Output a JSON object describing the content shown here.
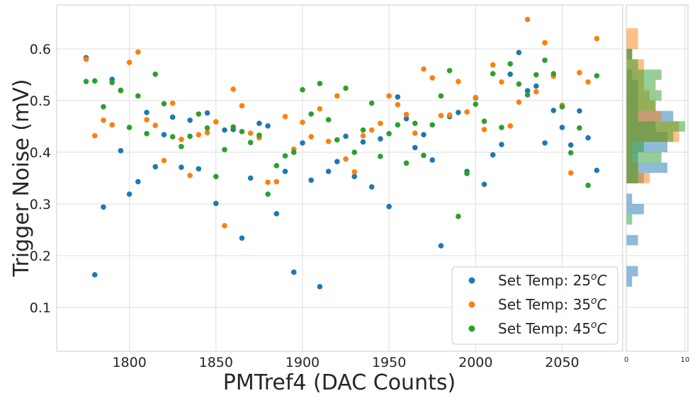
{
  "chart_data": [
    {
      "type": "scatter",
      "xlabel": "PMTref4 (DAC Counts)",
      "ylabel": "Trigger Noise (mV)",
      "xlim": [
        1758,
        2085
      ],
      "ylim": [
        0.015,
        0.685
      ],
      "x_ticks": [
        1800,
        1850,
        1900,
        1950,
        2000,
        2050
      ],
      "y_ticks": [
        0.1,
        0.2,
        0.3,
        0.4,
        0.5,
        0.6
      ],
      "x_tick_labels": [
        "1800",
        "1850",
        "1900",
        "1950",
        "2000",
        "2050"
      ],
      "y_tick_labels": [
        "0.1",
        "0.2",
        "0.3",
        "0.4",
        "0.5",
        "0.6"
      ],
      "grid": true,
      "legend_position": "bottom-right",
      "series": [
        {
          "name_prefix": "Set Temp: 25",
          "name_sup": "o",
          "name_suffix": "C",
          "color": "#1f77b4",
          "points": [
            [
              1775,
              0.583
            ],
            [
              1780,
              0.163
            ],
            [
              1785,
              0.294
            ],
            [
              1790,
              0.541
            ],
            [
              1795,
              0.403
            ],
            [
              1800,
              0.319
            ],
            [
              1805,
              0.343
            ],
            [
              1810,
              0.477
            ],
            [
              1815,
              0.372
            ],
            [
              1820,
              0.434
            ],
            [
              1825,
              0.468
            ],
            [
              1830,
              0.371
            ],
            [
              1835,
              0.462
            ],
            [
              1840,
              0.368
            ],
            [
              1845,
              0.476
            ],
            [
              1850,
              0.301
            ],
            [
              1855,
              0.443
            ],
            [
              1860,
              0.444
            ],
            [
              1865,
              0.234
            ],
            [
              1870,
              0.35
            ],
            [
              1875,
              0.456
            ],
            [
              1880,
              0.451
            ],
            [
              1885,
              0.281
            ],
            [
              1890,
              0.363
            ],
            [
              1895,
              0.168
            ],
            [
              1900,
              0.418
            ],
            [
              1905,
              0.346
            ],
            [
              1910,
              0.14
            ],
            [
              1915,
              0.363
            ],
            [
              1920,
              0.382
            ],
            [
              1925,
              0.431
            ],
            [
              1930,
              0.353
            ],
            [
              1935,
              0.42
            ],
            [
              1940,
              0.333
            ],
            [
              1945,
              0.426
            ],
            [
              1950,
              0.295
            ],
            [
              1955,
              0.507
            ],
            [
              1960,
              0.465
            ],
            [
              1965,
              0.409
            ],
            [
              1970,
              0.434
            ],
            [
              1975,
              0.385
            ],
            [
              1980,
              0.219
            ],
            [
              1985,
              0.469
            ],
            [
              1990,
              0.477
            ],
            [
              1995,
              0.363
            ],
            [
              2000,
              0.505
            ],
            [
              2005,
              0.338
            ],
            [
              2010,
              0.395
            ],
            [
              2015,
              0.415
            ],
            [
              2020,
              0.551
            ],
            [
              2025,
              0.593
            ],
            [
              2030,
              0.519
            ],
            [
              2035,
              0.528
            ],
            [
              2040,
              0.418
            ],
            [
              2045,
              0.481
            ],
            [
              2050,
              0.448
            ],
            [
              2055,
              0.414
            ],
            [
              2060,
              0.48
            ],
            [
              2065,
              0.428
            ],
            [
              2070,
              0.365
            ]
          ]
        },
        {
          "name_prefix": "Set Temp: 35",
          "name_sup": "o",
          "name_suffix": "C",
          "color": "#ff7f0e",
          "points": [
            [
              1775,
              0.58
            ],
            [
              1780,
              0.432
            ],
            [
              1785,
              0.462
            ],
            [
              1790,
              0.453
            ],
            [
              1795,
              0.519
            ],
            [
              1800,
              0.574
            ],
            [
              1805,
              0.594
            ],
            [
              1810,
              0.463
            ],
            [
              1815,
              0.452
            ],
            [
              1820,
              0.384
            ],
            [
              1825,
              0.495
            ],
            [
              1830,
              0.425
            ],
            [
              1835,
              0.355
            ],
            [
              1840,
              0.434
            ],
            [
              1845,
              0.438
            ],
            [
              1850,
              0.459
            ],
            [
              1855,
              0.258
            ],
            [
              1860,
              0.522
            ],
            [
              1865,
              0.49
            ],
            [
              1870,
              0.437
            ],
            [
              1875,
              0.428
            ],
            [
              1880,
              0.342
            ],
            [
              1885,
              0.343
            ],
            [
              1890,
              0.469
            ],
            [
              1895,
              0.406
            ],
            [
              1900,
              0.458
            ],
            [
              1905,
              0.43
            ],
            [
              1910,
              0.484
            ],
            [
              1915,
              0.421
            ],
            [
              1920,
              0.509
            ],
            [
              1925,
              0.387
            ],
            [
              1930,
              0.362
            ],
            [
              1935,
              0.432
            ],
            [
              1940,
              0.443
            ],
            [
              1945,
              0.456
            ],
            [
              1950,
              0.509
            ],
            [
              1955,
              0.492
            ],
            [
              1960,
              0.473
            ],
            [
              1965,
              0.437
            ],
            [
              1970,
              0.561
            ],
            [
              1975,
              0.544
            ],
            [
              1980,
              0.471
            ],
            [
              1985,
              0.472
            ],
            [
              1990,
              0.537
            ],
            [
              1995,
              0.478
            ],
            [
              2000,
              0.506
            ],
            [
              2005,
              0.444
            ],
            [
              2010,
              0.569
            ],
            [
              2015,
              0.536
            ],
            [
              2020,
              0.451
            ],
            [
              2025,
              0.497
            ],
            [
              2030,
              0.657
            ],
            [
              2035,
              0.517
            ],
            [
              2040,
              0.612
            ],
            [
              2045,
              0.547
            ],
            [
              2050,
              0.491
            ],
            [
              2055,
              0.36
            ],
            [
              2060,
              0.554
            ],
            [
              2065,
              0.536
            ],
            [
              2070,
              0.62
            ]
          ]
        },
        {
          "name_prefix": "Set Temp: 45",
          "name_sup": "o",
          "name_suffix": "C",
          "color": "#2ca02c",
          "points": [
            [
              1775,
              0.537
            ],
            [
              1780,
              0.538
            ],
            [
              1785,
              0.488
            ],
            [
              1790,
              0.535
            ],
            [
              1795,
              0.52
            ],
            [
              1800,
              0.448
            ],
            [
              1805,
              0.509
            ],
            [
              1810,
              0.436
            ],
            [
              1815,
              0.551
            ],
            [
              1820,
              0.494
            ],
            [
              1825,
              0.43
            ],
            [
              1830,
              0.411
            ],
            [
              1835,
              0.431
            ],
            [
              1840,
              0.474
            ],
            [
              1845,
              0.447
            ],
            [
              1850,
              0.353
            ],
            [
              1855,
              0.405
            ],
            [
              1860,
              0.449
            ],
            [
              1865,
              0.44
            ],
            [
              1870,
              0.419
            ],
            [
              1875,
              0.433
            ],
            [
              1880,
              0.319
            ],
            [
              1885,
              0.374
            ],
            [
              1890,
              0.393
            ],
            [
              1895,
              0.4
            ],
            [
              1900,
              0.521
            ],
            [
              1905,
              0.474
            ],
            [
              1910,
              0.533
            ],
            [
              1915,
              0.463
            ],
            [
              1920,
              0.424
            ],
            [
              1925,
              0.524
            ],
            [
              1930,
              0.4
            ],
            [
              1935,
              0.443
            ],
            [
              1940,
              0.495
            ],
            [
              1945,
              0.392
            ],
            [
              1950,
              0.436
            ],
            [
              1955,
              0.453
            ],
            [
              1960,
              0.379
            ],
            [
              1965,
              0.456
            ],
            [
              1970,
              0.394
            ],
            [
              1975,
              0.453
            ],
            [
              1980,
              0.509
            ],
            [
              1985,
              0.558
            ],
            [
              1990,
              0.276
            ],
            [
              1995,
              0.359
            ],
            [
              2000,
              0.493
            ],
            [
              2005,
              0.46
            ],
            [
              2010,
              0.552
            ],
            [
              2015,
              0.448
            ],
            [
              2020,
              0.571
            ],
            [
              2025,
              0.532
            ],
            [
              2030,
              0.511
            ],
            [
              2035,
              0.55
            ],
            [
              2040,
              0.578
            ],
            [
              2045,
              0.552
            ],
            [
              2050,
              0.488
            ],
            [
              2055,
              0.399
            ],
            [
              2060,
              0.447
            ],
            [
              2065,
              0.336
            ],
            [
              2070,
              0.548
            ]
          ]
        }
      ]
    },
    {
      "type": "histogram",
      "orientation": "horizontal",
      "xlim": [
        0,
        10.5
      ],
      "x_ticks": [
        0,
        10
      ],
      "x_tick_labels": [
        "0",
        "10"
      ],
      "series": [
        {
          "name": "25C",
          "color": "#1f77b4",
          "opacity": 0.5,
          "bins": [
            [
              0.14,
              0.16,
              1
            ],
            [
              0.16,
              0.18,
              2
            ],
            [
              0.22,
              0.24,
              2
            ],
            [
              0.28,
              0.3,
              3
            ],
            [
              0.3,
              0.32,
              1
            ],
            [
              0.34,
              0.36,
              3
            ],
            [
              0.36,
              0.38,
              7
            ],
            [
              0.38,
              0.4,
              2
            ],
            [
              0.4,
              0.42,
              7
            ],
            [
              0.42,
              0.44,
              7
            ],
            [
              0.44,
              0.46,
              5
            ],
            [
              0.46,
              0.48,
              8
            ],
            [
              0.48,
              0.5,
              2
            ],
            [
              0.5,
              0.52,
              2
            ],
            [
              0.52,
              0.54,
              2
            ],
            [
              0.54,
              0.56,
              1
            ],
            [
              0.58,
              0.6,
              1
            ]
          ]
        },
        {
          "name": "35C",
          "color": "#ff7f0e",
          "opacity": 0.5,
          "bins": [
            [
              0.34,
              0.36,
              4
            ],
            [
              0.36,
              0.38,
              2
            ],
            [
              0.38,
              0.4,
              1
            ],
            [
              0.4,
              0.42,
              1
            ],
            [
              0.42,
              0.44,
              9
            ],
            [
              0.44,
              0.46,
              9
            ],
            [
              0.46,
              0.48,
              6
            ],
            [
              0.48,
              0.5,
              5
            ],
            [
              0.5,
              0.52,
              4
            ],
            [
              0.52,
              0.54,
              3
            ],
            [
              0.54,
              0.56,
              3
            ],
            [
              0.56,
              0.58,
              3
            ],
            [
              0.58,
              0.6,
              1
            ],
            [
              0.6,
              0.62,
              2
            ],
            [
              0.62,
              0.64,
              2
            ]
          ]
        },
        {
          "name": "45C",
          "color": "#2ca02c",
          "opacity": 0.5,
          "bins": [
            [
              0.26,
              0.28,
              1
            ],
            [
              0.34,
              0.36,
              2
            ],
            [
              0.36,
              0.38,
              2
            ],
            [
              0.38,
              0.4,
              6
            ],
            [
              0.4,
              0.42,
              3
            ],
            [
              0.42,
              0.44,
              8
            ],
            [
              0.44,
              0.46,
              10
            ],
            [
              0.46,
              0.48,
              2
            ],
            [
              0.48,
              0.5,
              5
            ],
            [
              0.5,
              0.52,
              6
            ],
            [
              0.52,
              0.54,
              5
            ],
            [
              0.54,
              0.56,
              6
            ],
            [
              0.56,
              0.58,
              2
            ],
            [
              0.58,
              0.6,
              1
            ]
          ]
        }
      ]
    }
  ]
}
